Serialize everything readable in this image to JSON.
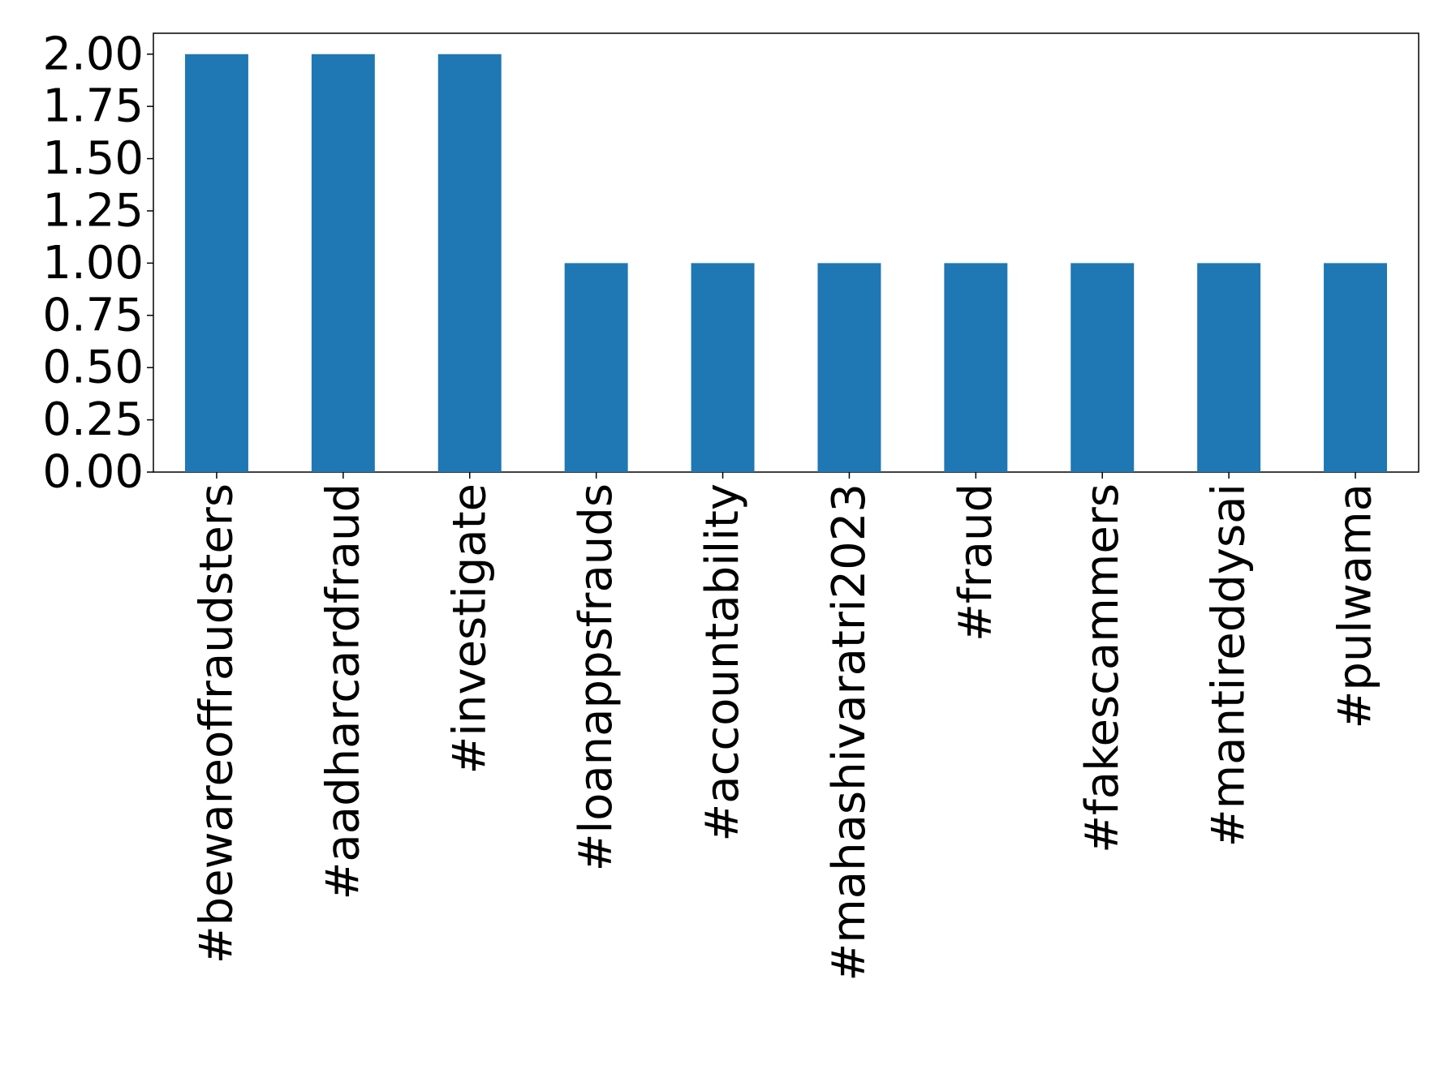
{
  "chart_data": {
    "type": "bar",
    "categories": [
      "#bewareoffraudsters",
      "#aadharcardfraud",
      "#investigate",
      "#loanappsfrauds",
      "#accountability",
      "#mahashivaratri2023",
      "#fraud",
      "#fakescammers",
      "#mantireddysai",
      "#pulwama"
    ],
    "values": [
      2,
      2,
      2,
      1,
      1,
      1,
      1,
      1,
      1,
      1
    ],
    "color": "#1f77b4",
    "ylim": [
      0,
      2.1
    ],
    "yticks": [
      {
        "value": 0,
        "label": "0.00"
      },
      {
        "value": 0.25,
        "label": "0.25"
      },
      {
        "value": 0.5,
        "label": "0.50"
      },
      {
        "value": 0.75,
        "label": "0.75"
      },
      {
        "value": 1,
        "label": "1.00"
      },
      {
        "value": 1.25,
        "label": "1.25"
      },
      {
        "value": 1.5,
        "label": "1.50"
      },
      {
        "value": 1.75,
        "label": "1.75"
      },
      {
        "value": 2,
        "label": "2.00"
      }
    ],
    "grid": false
  }
}
